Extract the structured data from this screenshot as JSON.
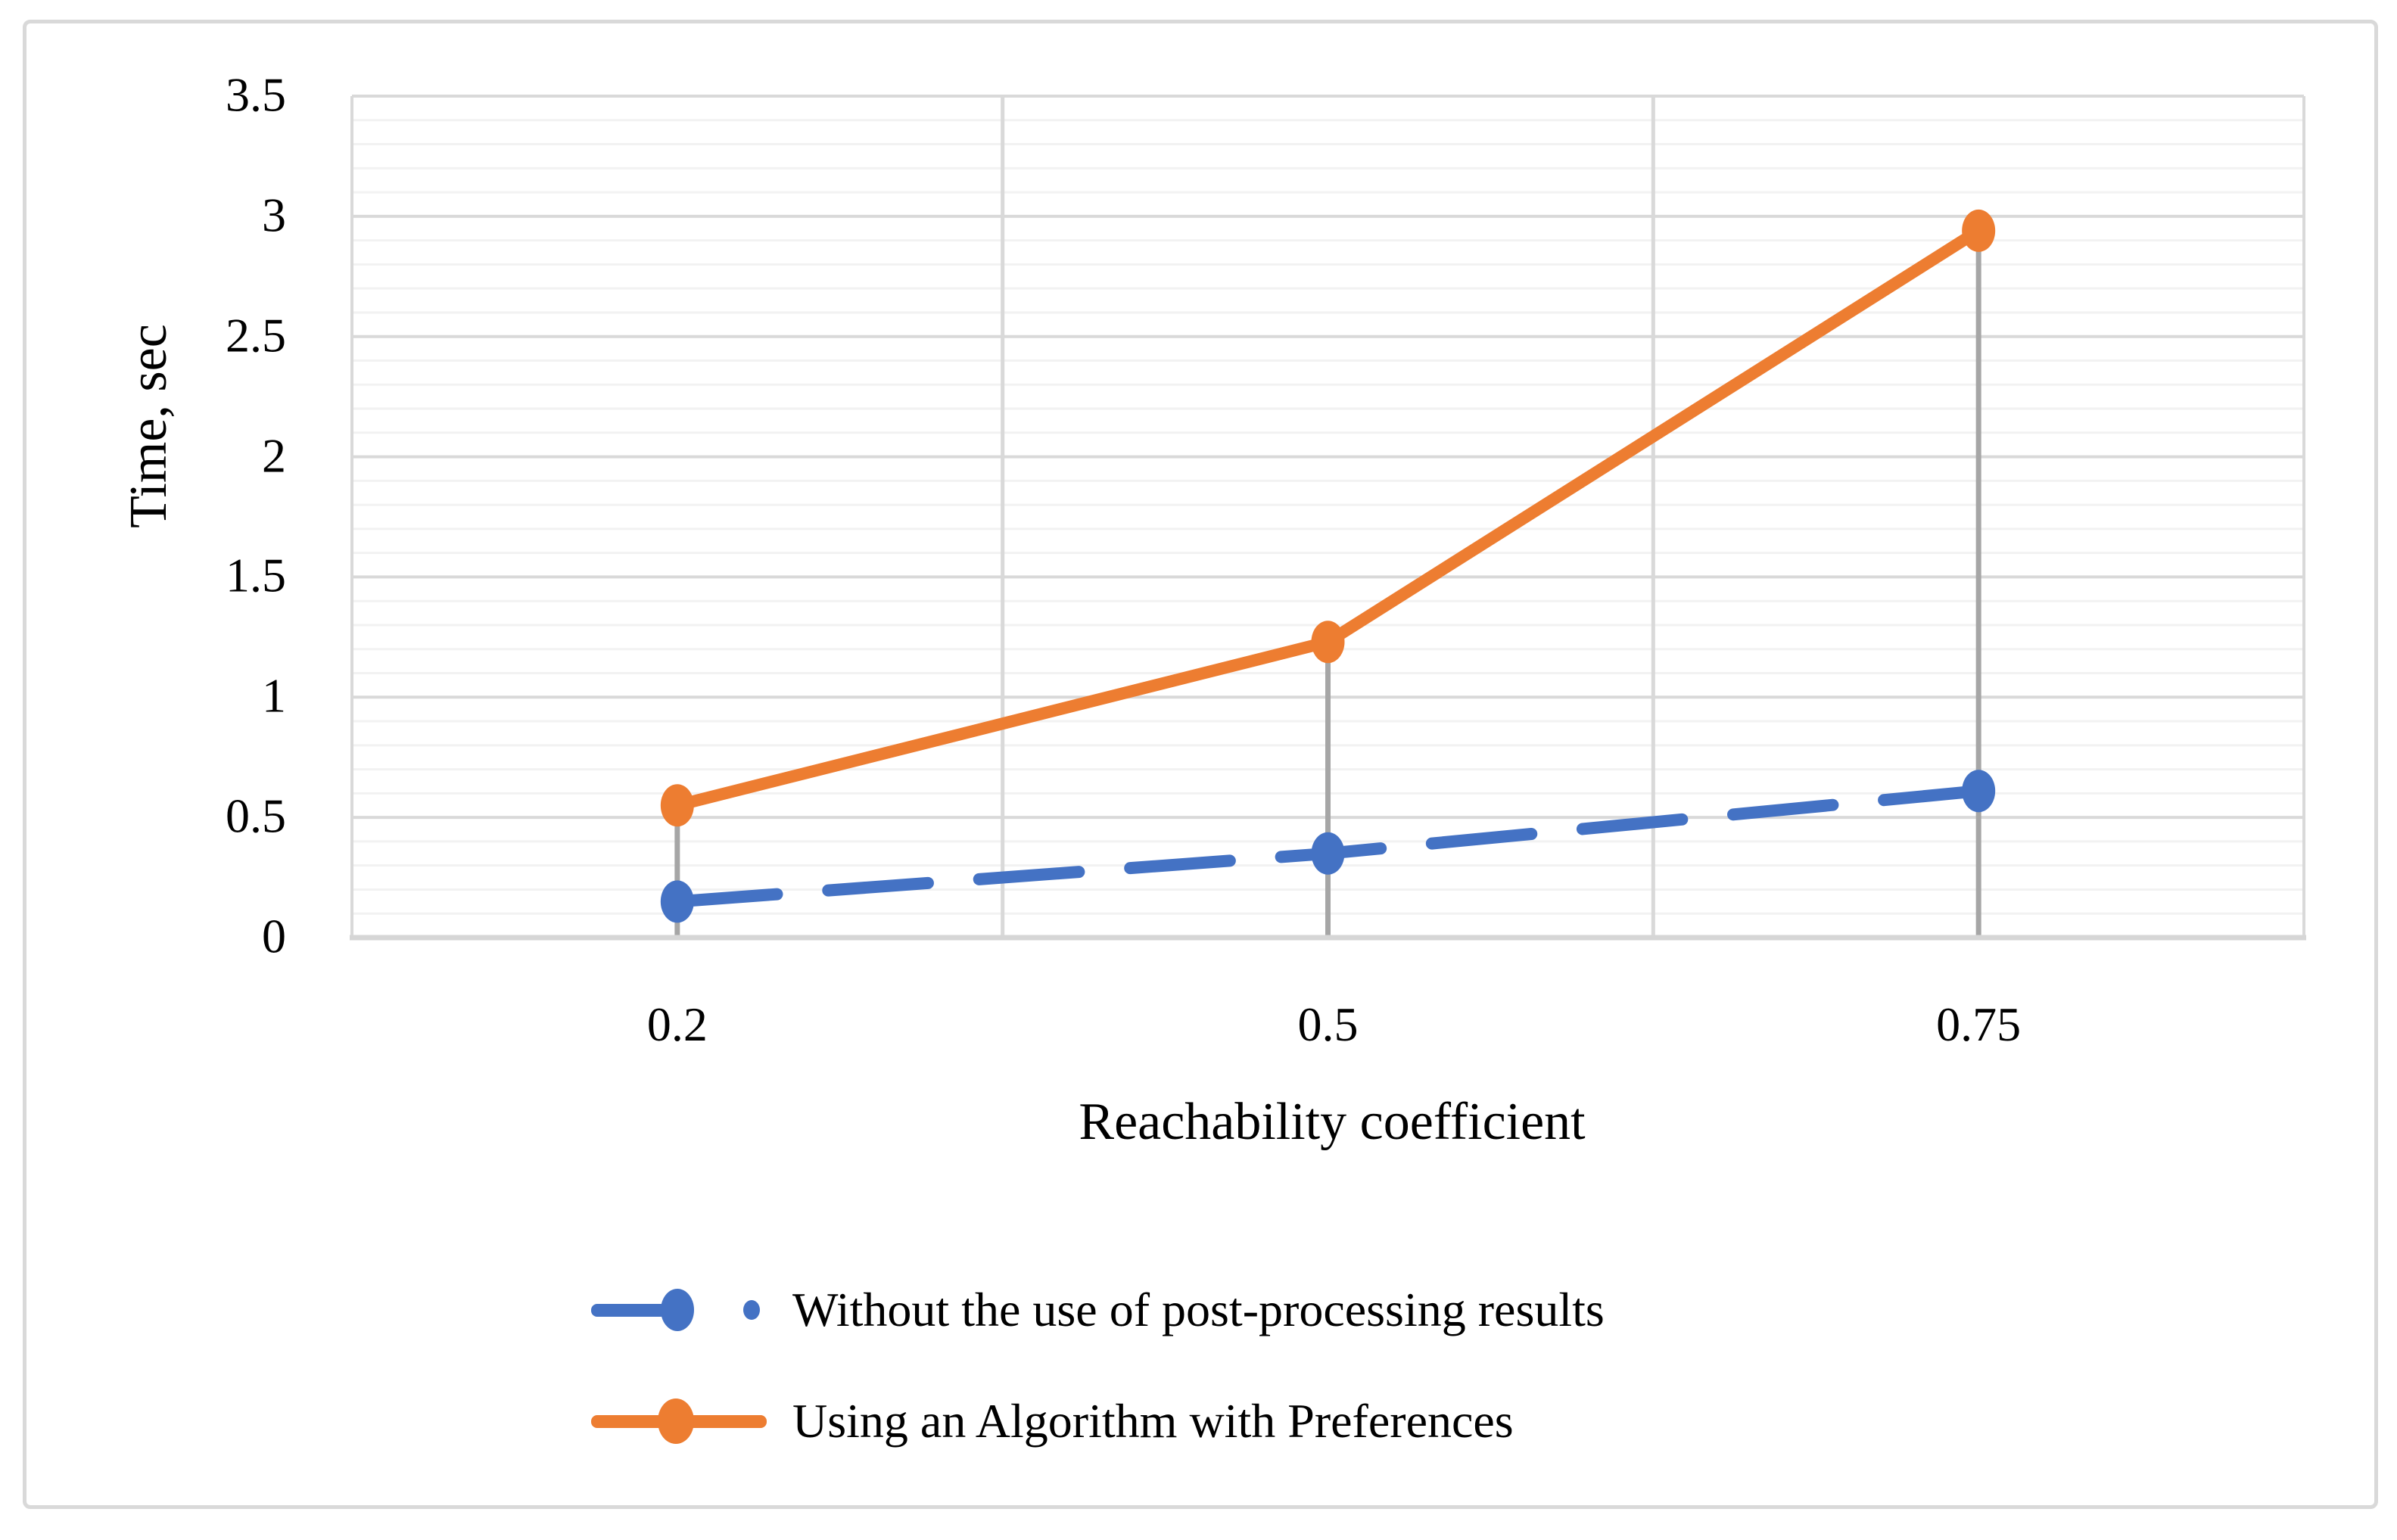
{
  "figure": {
    "background": "#FFFFFF",
    "border_color": "#D9D9D9"
  },
  "chart_data": {
    "type": "line",
    "title": "",
    "categories": [
      "0.2",
      "0.5",
      "0.75"
    ],
    "series": [
      {
        "name": "Without the use of post-processing results",
        "values": [
          0.15,
          0.35,
          0.61
        ],
        "color": "#4472C4",
        "line_style": "dashed",
        "marker": "circle"
      },
      {
        "name": "Using an Algorithm with Preferences",
        "values": [
          0.55,
          1.23,
          2.94
        ],
        "color": "#ED7D31",
        "line_style": "solid",
        "marker": "circle"
      }
    ],
    "xlabel": "Reachability coefficient",
    "ylabel": "Time, sec",
    "ylim": [
      0,
      3.5
    ],
    "ytick_step": 0.5,
    "yminor_step": 0.1,
    "yticks": [
      "0",
      "0.5",
      "1",
      "1.5",
      "2",
      "2.5",
      "3",
      "3.5"
    ],
    "grid": {
      "major_color": "#D9D9D9",
      "minor_color": "#F2F2F2",
      "axis_color": "#D6D6D6",
      "dropline_color": "#A6A6A6"
    },
    "legend_position": "bottom-left"
  }
}
